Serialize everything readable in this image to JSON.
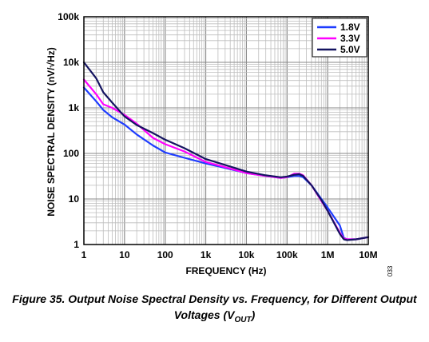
{
  "chart_data": {
    "type": "line",
    "x_scale": "log",
    "y_scale": "log",
    "xlim": [
      1,
      10000000
    ],
    "ylim": [
      1,
      100000
    ],
    "xlabel": "FREQUENCY (Hz)",
    "ylabel": "NOISE SPECTRAL DENSITY (nV/√Hz)",
    "x_ticks": [
      "1",
      "10",
      "100",
      "1k",
      "10k",
      "100k",
      "1M",
      "10M"
    ],
    "y_ticks": [
      "1",
      "10",
      "100",
      "1k",
      "10k",
      "100k"
    ],
    "grid": true,
    "legend_position": "top-right",
    "series": [
      {
        "name": "1.8V",
        "color": "#1e3cff",
        "x": [
          1,
          2,
          3,
          5,
          10,
          20,
          50,
          100,
          300,
          1000,
          3000,
          10000,
          30000,
          70000,
          100000,
          150000,
          200000,
          250000,
          400000,
          700000,
          1000000,
          2000000,
          2500000,
          3000000,
          5000000,
          10000000
        ],
        "y": [
          2800,
          1400,
          900,
          620,
          430,
          260,
          150,
          105,
          80,
          60,
          48,
          37,
          32,
          29,
          30,
          32,
          32,
          30,
          20,
          10,
          6.5,
          2.6,
          1.4,
          1.3,
          1.3,
          1.45
        ]
      },
      {
        "name": "3.3V",
        "color": "#ff00ff",
        "x": [
          1,
          2,
          3,
          5,
          10,
          20,
          50,
          100,
          300,
          1000,
          3000,
          10000,
          30000,
          70000,
          100000,
          150000,
          200000,
          250000,
          400000,
          700000,
          1000000,
          2000000,
          2500000,
          3000000,
          5000000,
          10000000
        ],
        "y": [
          4200,
          2000,
          1200,
          1000,
          700,
          450,
          220,
          160,
          110,
          65,
          50,
          37,
          32,
          29,
          30,
          36,
          36,
          33,
          20,
          9,
          5.5,
          1.8,
          1.35,
          1.3,
          1.3,
          1.45
        ]
      },
      {
        "name": "5.0V",
        "color": "#141460",
        "x": [
          1,
          2,
          3,
          5,
          10,
          20,
          50,
          100,
          300,
          1000,
          3000,
          10000,
          30000,
          70000,
          100000,
          150000,
          200000,
          250000,
          400000,
          700000,
          1000000,
          2000000,
          2500000,
          3000000,
          5000000,
          10000000
        ],
        "y": [
          10000,
          4500,
          2200,
          1300,
          650,
          420,
          280,
          200,
          130,
          75,
          56,
          40,
          33,
          30,
          31,
          34,
          35,
          32,
          20,
          9.5,
          5.5,
          1.7,
          1.3,
          1.25,
          1.3,
          1.45
        ]
      }
    ]
  },
  "figure_id": "033",
  "caption": {
    "main": "Figure 35. Output Noise Spectral Density vs. Frequency, for Different Output Voltages (V",
    "sub": "OUT",
    "end": ")"
  }
}
